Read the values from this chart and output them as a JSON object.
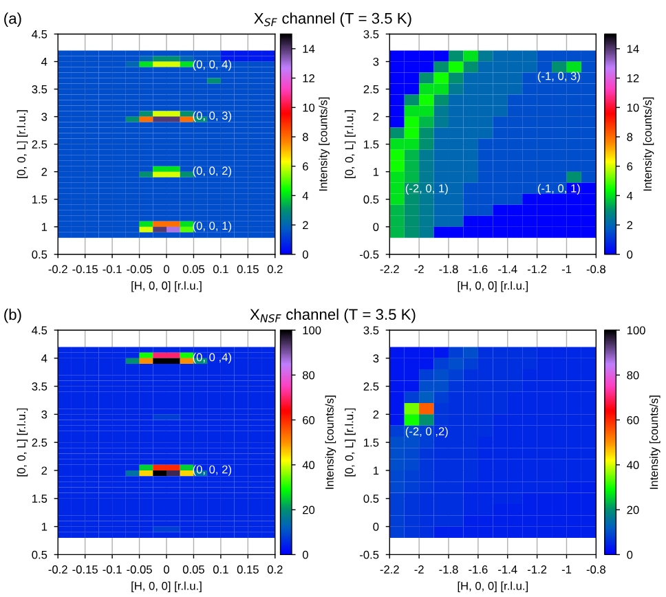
{
  "chart_data": [
    {
      "type": "heatmap",
      "title": "X$_{SF}$ channel (T = 3.5 K)",
      "xlabel": "[H, 0, 0] [r.l.u.]",
      "ylabel": "[0, 0, L] [r.l.u.]",
      "clabel": "Intensity [counts/s]",
      "grid": true,
      "xlim": [
        -0.2,
        0.2
      ],
      "xticks": [
        -0.2,
        -0.15,
        -0.1,
        -0.05,
        0,
        0.05,
        0.1,
        0.15,
        0.2
      ],
      "ylim": [
        0.5,
        4.5
      ],
      "yticks": [
        0.5,
        1,
        1.5,
        2,
        2.5,
        3,
        3.5,
        4,
        4.5
      ],
      "clim": [
        0,
        15
      ],
      "cticks": [
        0,
        2,
        4,
        6,
        8,
        10,
        12,
        14
      ],
      "annotations": [
        "(a)",
        "(0, 0, 4)",
        "(0, 0, 3)",
        "(0, 0, 2)",
        "(0, 0, 1)"
      ],
      "x": [
        -0.1875,
        -0.1625,
        -0.1375,
        -0.1125,
        -0.0875,
        -0.0625,
        -0.0375,
        -0.0125,
        0.0125,
        0.0375,
        0.0625,
        0.0875,
        0.1125,
        0.1375,
        0.1625,
        0.1875
      ],
      "y": [
        4.15,
        4.05,
        3.95,
        3.85,
        3.75,
        3.65,
        3.55,
        3.45,
        3.35,
        3.25,
        3.15,
        3.05,
        2.95,
        2.85,
        2.75,
        2.65,
        2.55,
        2.45,
        2.35,
        2.25,
        2.15,
        2.05,
        1.95,
        1.85,
        1.75,
        1.65,
        1.55,
        1.45,
        1.35,
        1.25,
        1.15,
        1.05,
        0.95,
        0.85
      ],
      "cells": [
        [
          1.5,
          1.5,
          1.5,
          1.5,
          1.5,
          1.5,
          1.5,
          1.5,
          1.5,
          1.5,
          1.5,
          1.5,
          0.5,
          0.5,
          0.5,
          0.5
        ],
        [
          1.5,
          1.5,
          1.5,
          1.5,
          1.5,
          1.5,
          2,
          3,
          3,
          2,
          1.5,
          1.5,
          0.5,
          0.5,
          0.5,
          0.5
        ],
        [
          1.5,
          1.5,
          1.5,
          1.5,
          1.5,
          2,
          4,
          6,
          6,
          4,
          1.5,
          1.5,
          1.5,
          1.5,
          1.5,
          1.5
        ],
        [
          1.5,
          1.5,
          1.5,
          1.5,
          1.5,
          1.5,
          1.5,
          1.5,
          1.5,
          1.5,
          1.5,
          1.5,
          1.5,
          1.5,
          1.5,
          1.5
        ],
        [
          1.5,
          1.5,
          1.5,
          1.5,
          1.5,
          1.5,
          1.5,
          1.5,
          1.5,
          1.5,
          1.5,
          1.5,
          1.5,
          1.5,
          1.5,
          1.5
        ],
        [
          1.5,
          1.5,
          1.5,
          1.5,
          1.5,
          1.5,
          1.5,
          1.5,
          1.5,
          1.5,
          1.5,
          3,
          1.5,
          1.5,
          1.5,
          1.5
        ],
        [
          1.5,
          1.5,
          1.5,
          1.5,
          1.5,
          1.5,
          1.5,
          1.5,
          1.5,
          1.5,
          1.5,
          1.5,
          1.5,
          1.5,
          1.5,
          1.5
        ],
        [
          1.5,
          1.5,
          1.5,
          1.5,
          1.5,
          1.5,
          1.5,
          1.5,
          1.5,
          1.5,
          1.5,
          1.5,
          1.5,
          1.5,
          1.5,
          1.5
        ],
        [
          1.5,
          1.5,
          1.5,
          1.5,
          1.5,
          1.5,
          1.5,
          1.5,
          1.5,
          1.5,
          1.5,
          1.5,
          1.5,
          1.5,
          1.5,
          1.5
        ],
        [
          1.5,
          1.5,
          1.5,
          1.5,
          1.5,
          1.5,
          1.5,
          1.5,
          1.5,
          1.5,
          1.5,
          1.5,
          1.5,
          1.5,
          1.5,
          1.5
        ],
        [
          1.5,
          1.5,
          1.5,
          1.5,
          1.5,
          1.5,
          1.5,
          1.5,
          1.5,
          1.5,
          1.5,
          1.5,
          1.5,
          1.5,
          1.5,
          1.5
        ],
        [
          1.5,
          1.5,
          1.5,
          1.5,
          1.5,
          1.5,
          3,
          6,
          6,
          3,
          1.5,
          1.5,
          1.5,
          1.5,
          1.5,
          1.5
        ],
        [
          1.5,
          1.5,
          1.5,
          1.5,
          1.5,
          3,
          8,
          14,
          14,
          8,
          3,
          1.5,
          1.5,
          1.5,
          1.5,
          1.5
        ],
        [
          1.5,
          1.5,
          1.5,
          1.5,
          1.5,
          1.5,
          1.5,
          1.5,
          1.5,
          1.5,
          1.5,
          1.5,
          1.5,
          1.5,
          1.5,
          1.5
        ],
        [
          1.5,
          1.5,
          1.5,
          1.5,
          1.5,
          1.5,
          1.5,
          1.5,
          1.5,
          1.5,
          1.5,
          1.5,
          1.5,
          1.5,
          1.5,
          1.5
        ],
        [
          1.5,
          1.5,
          1.5,
          1.5,
          1.5,
          1.5,
          1.5,
          1.5,
          1.5,
          1.5,
          1.5,
          1.5,
          1.5,
          1.5,
          1.5,
          1.5
        ],
        [
          1.5,
          1.5,
          1.5,
          1.5,
          1.5,
          1.5,
          1.5,
          1.5,
          1.5,
          1.5,
          1.5,
          1.5,
          1.5,
          1.5,
          1.5,
          1.5
        ],
        [
          1.5,
          1.5,
          1.5,
          1.5,
          1.5,
          1.5,
          1.5,
          1.5,
          1.5,
          1.5,
          1.5,
          1.5,
          1.5,
          1.5,
          1.5,
          1.5
        ],
        [
          1.5,
          1.5,
          1.5,
          1.5,
          1.5,
          1.5,
          1.5,
          1.5,
          1.5,
          1.5,
          1.5,
          1.5,
          1.5,
          1.5,
          1.5,
          1.5
        ],
        [
          1.5,
          1.5,
          1.5,
          1.5,
          1.5,
          1.5,
          1.5,
          1.5,
          1.5,
          1.5,
          1.5,
          1.5,
          1.5,
          1.5,
          1.5,
          1.5
        ],
        [
          1.5,
          1.5,
          1.5,
          1.5,
          1.5,
          1.5,
          1.5,
          1.5,
          1.5,
          1.5,
          1.5,
          1.5,
          1.5,
          1.5,
          1.5,
          1.5
        ],
        [
          1.5,
          1.5,
          1.5,
          1.5,
          1.5,
          1.5,
          1.5,
          4,
          4,
          1.5,
          1.5,
          1.5,
          1.5,
          1.5,
          1.5,
          1.5
        ],
        [
          1.5,
          1.5,
          1.5,
          1.5,
          1.5,
          1.5,
          3,
          6,
          6,
          3,
          1.5,
          1.5,
          1.5,
          1.5,
          1.5,
          1.5
        ],
        [
          1.5,
          1.5,
          1.5,
          1.5,
          1.5,
          1.5,
          1.5,
          1.5,
          1.5,
          1.5,
          1.5,
          1.5,
          1.5,
          1.5,
          1.5,
          1.5
        ],
        [
          1.5,
          1.5,
          1.5,
          1.5,
          1.5,
          1.5,
          1.5,
          1.5,
          1.5,
          1.5,
          1.5,
          1.5,
          1.5,
          1.5,
          1.5,
          1.5
        ],
        [
          1.5,
          1.5,
          1.5,
          1.5,
          1.5,
          1.5,
          1.5,
          1.5,
          1.5,
          1.5,
          1.5,
          1.5,
          1.5,
          1.5,
          1.5,
          1.5
        ],
        [
          1.5,
          1.5,
          1.5,
          1.5,
          1.5,
          1.5,
          1.5,
          1.5,
          1.5,
          1.5,
          1.5,
          1.5,
          1.5,
          1.5,
          1.5,
          1.5
        ],
        [
          1.5,
          1.5,
          1.5,
          1.5,
          1.5,
          1.5,
          1.5,
          1.5,
          1.5,
          1.5,
          1.5,
          1.5,
          1.5,
          1.5,
          1.5,
          1.5
        ],
        [
          1.5,
          1.5,
          1.5,
          1.5,
          1.5,
          1.5,
          1.5,
          1.5,
          1.5,
          1.5,
          1.5,
          1.5,
          1.5,
          1.5,
          1.5,
          1.5
        ],
        [
          1.5,
          1.5,
          1.5,
          1.5,
          1.5,
          1.5,
          1.5,
          1.5,
          1.5,
          1.5,
          1.5,
          1.5,
          1.5,
          1.5,
          1.5,
          1.5
        ],
        [
          1.5,
          1.5,
          1.5,
          1.5,
          1.5,
          1.5,
          1.5,
          1.5,
          1.5,
          1.5,
          1.5,
          1.5,
          1.5,
          1.5,
          1.5,
          1.5
        ],
        [
          1.5,
          1.5,
          1.5,
          1.5,
          1.5,
          1.5,
          4,
          8,
          8,
          4,
          1.5,
          1.5,
          1.5,
          1.5,
          1.5,
          1.5
        ],
        [
          1.5,
          1.5,
          1.5,
          1.5,
          1.5,
          1.5,
          6,
          14,
          13,
          5,
          1.5,
          1.5,
          1.5,
          1.5,
          1.5,
          1.5
        ],
        [
          1.5,
          1.5,
          1.5,
          1.5,
          1.5,
          1.5,
          1.5,
          1.5,
          1.5,
          1.5,
          1.5,
          1.5,
          1.5,
          1.5,
          1.5,
          1.5
        ]
      ]
    },
    {
      "type": "heatmap",
      "xlabel": "[H, 0, 0] [r.l.u.]",
      "ylabel": "[0, 0, L] [r.l.u.]",
      "clabel": "Intensity [counts/s]",
      "grid": true,
      "xlim": [
        -2.2,
        -0.8
      ],
      "xticks": [
        -2.2,
        -2,
        -1.8,
        -1.6,
        -1.4,
        -1.2,
        -1,
        -0.8
      ],
      "ylim": [
        -0.5,
        3.5
      ],
      "yticks": [
        -0.5,
        0,
        0.5,
        1,
        1.5,
        2,
        2.5,
        3,
        3.5
      ],
      "clim": [
        0,
        15
      ],
      "cticks": [
        0,
        2,
        4,
        6,
        8,
        10,
        12,
        14
      ],
      "annotations": [
        "(-1, 0, 3)",
        "(-2, 0, 1)",
        "(-1, 0, 1)"
      ],
      "x": [
        -2.15,
        -2.05,
        -1.95,
        -1.85,
        -1.75,
        -1.65,
        -1.55,
        -1.45,
        -1.35,
        -1.25,
        -1.15,
        -1.05,
        -0.95,
        -0.85
      ],
      "y": [
        3.1,
        2.9,
        2.7,
        2.5,
        2.3,
        2.1,
        1.9,
        1.7,
        1.5,
        1.3,
        1.1,
        0.9,
        0.7,
        0.5,
        0.3,
        0.1,
        -0.1
      ],
      "cells": [
        [
          0,
          0,
          0,
          0,
          3,
          4,
          2.5,
          2,
          2,
          2,
          1.5,
          1.5,
          1.5,
          1.5
        ],
        [
          0,
          0,
          0,
          3,
          4.5,
          3,
          2,
          2,
          2,
          2,
          1.5,
          3,
          4,
          1.5
        ],
        [
          0,
          0,
          3,
          4.5,
          3,
          2,
          2,
          2,
          2,
          1.5,
          1.5,
          1.5,
          1.5,
          1.5
        ],
        [
          0,
          0,
          4,
          4,
          2.5,
          2,
          2,
          2,
          2,
          1.5,
          1.5,
          1.5,
          1.5,
          1.5
        ],
        [
          0,
          3,
          4.5,
          3,
          2,
          2,
          2,
          2,
          1.5,
          1.5,
          1.5,
          1.5,
          1.5,
          1.5
        ],
        [
          0,
          4,
          4,
          2.5,
          2,
          2,
          2,
          2,
          1.5,
          1.5,
          1.5,
          1.5,
          1.5,
          1.5
        ],
        [
          0,
          4.5,
          3.5,
          2.5,
          2,
          2,
          2,
          1.5,
          1.5,
          1.5,
          1.5,
          1.5,
          1.5,
          1.5
        ],
        [
          3,
          4.5,
          3,
          2,
          2,
          2,
          2,
          1.5,
          1.5,
          1.5,
          1.5,
          1.5,
          1.5,
          1.5
        ],
        [
          4,
          4,
          3,
          2,
          2,
          2,
          1.5,
          1.5,
          1.5,
          1.5,
          1.5,
          1.5,
          1.5,
          1.5
        ],
        [
          4.5,
          3.5,
          2.5,
          2,
          2,
          2,
          1.5,
          1.5,
          1.5,
          1.5,
          1.5,
          1.5,
          1.5,
          1.5
        ],
        [
          4.5,
          3.5,
          2.5,
          2,
          2,
          2,
          1.5,
          1.5,
          1.5,
          1.5,
          1.5,
          1.5,
          1.5,
          1.5
        ],
        [
          4,
          3.5,
          2.5,
          2,
          2,
          2,
          1.5,
          1.5,
          1.5,
          1.5,
          1.5,
          1.5,
          3,
          1.5
        ],
        [
          4,
          3,
          2.5,
          2,
          2,
          1.5,
          1.5,
          1.5,
          1.5,
          1.5,
          1.5,
          1.5,
          0,
          0
        ],
        [
          4,
          3,
          2.5,
          2,
          2,
          1.5,
          1.5,
          1.5,
          1.5,
          0,
          0,
          0,
          0,
          0
        ],
        [
          3.5,
          3,
          2.5,
          2,
          2,
          1.5,
          1.5,
          0,
          0,
          0,
          0,
          0,
          0,
          0
        ],
        [
          3.5,
          3,
          2.5,
          2,
          2,
          0,
          0,
          0,
          0,
          0,
          0,
          0,
          0,
          0
        ],
        [
          3.5,
          3,
          2.5,
          0,
          0,
          0,
          0,
          0,
          0,
          0,
          0,
          0,
          0,
          0
        ]
      ]
    },
    {
      "type": "heatmap",
      "title": "X$_{NSF}$ channel (T = 3.5 K)",
      "xlabel": "[H, 0, 0] [r.l.u.]",
      "ylabel": "[0, 0, L] [r.l.u.]",
      "clabel": "Intensity [counts/s]",
      "grid": true,
      "xlim": [
        -0.2,
        0.2
      ],
      "xticks": [
        -0.2,
        -0.15,
        -0.1,
        -0.05,
        0,
        0.05,
        0.1,
        0.15,
        0.2
      ],
      "ylim": [
        0.5,
        4.5
      ],
      "yticks": [
        0.5,
        1,
        1.5,
        2,
        2.5,
        3,
        3.5,
        4,
        4.5
      ],
      "clim": [
        0,
        100
      ],
      "cticks": [
        0,
        20,
        40,
        60,
        80,
        100
      ],
      "annotations": [
        "(b)",
        "(0, 0 ,4)",
        "(0, 0, 2)"
      ],
      "x": [
        -0.1875,
        -0.1625,
        -0.1375,
        -0.1125,
        -0.0875,
        -0.0625,
        -0.0375,
        -0.0125,
        0.0125,
        0.0375,
        0.0625,
        0.0875,
        0.1125,
        0.1375,
        0.1625,
        0.1875
      ],
      "y": [
        4.15,
        4.05,
        3.95,
        3.85,
        3.75,
        3.65,
        3.55,
        3.45,
        3.35,
        3.25,
        3.15,
        3.05,
        2.95,
        2.85,
        2.75,
        2.65,
        2.55,
        2.45,
        2.35,
        2.25,
        2.15,
        2.05,
        1.95,
        1.85,
        1.75,
        1.65,
        1.55,
        1.45,
        1.35,
        1.25,
        1.15,
        1.05,
        0.95,
        0.85
      ],
      "cells": [
        [
          5,
          5,
          5,
          5,
          5,
          5,
          5,
          5,
          5,
          5,
          5,
          5,
          5,
          5,
          5,
          5
        ],
        [
          5,
          5,
          5,
          5,
          5,
          5,
          30,
          70,
          70,
          30,
          5,
          5,
          5,
          5,
          5,
          5
        ],
        [
          5,
          5,
          5,
          5,
          5,
          20,
          50,
          100,
          100,
          50,
          20,
          5,
          5,
          5,
          5,
          5
        ],
        [
          5,
          5,
          5,
          5,
          5,
          5,
          5,
          5,
          5,
          5,
          5,
          5,
          5,
          5,
          5,
          5
        ],
        [
          5,
          5,
          5,
          5,
          5,
          5,
          5,
          5,
          5,
          5,
          5,
          5,
          5,
          5,
          5,
          5
        ],
        [
          5,
          5,
          5,
          5,
          5,
          5,
          5,
          5,
          5,
          5,
          5,
          5,
          5,
          5,
          5,
          5
        ],
        [
          5,
          5,
          5,
          5,
          5,
          5,
          5,
          5,
          5,
          5,
          5,
          5,
          5,
          5,
          5,
          5
        ],
        [
          5,
          5,
          5,
          5,
          5,
          5,
          5,
          5,
          5,
          5,
          5,
          5,
          5,
          5,
          5,
          5
        ],
        [
          5,
          5,
          5,
          5,
          5,
          5,
          5,
          5,
          5,
          5,
          5,
          5,
          5,
          5,
          5,
          5
        ],
        [
          5,
          5,
          5,
          5,
          5,
          5,
          5,
          5,
          5,
          5,
          5,
          5,
          5,
          5,
          5,
          5
        ],
        [
          5,
          5,
          5,
          5,
          5,
          5,
          5,
          5,
          5,
          5,
          5,
          5,
          5,
          5,
          5,
          5
        ],
        [
          5,
          5,
          5,
          5,
          5,
          5,
          5,
          5,
          5,
          5,
          5,
          5,
          5,
          5,
          5,
          5
        ],
        [
          5,
          5,
          5,
          5,
          5,
          5,
          5,
          8,
          8,
          5,
          5,
          5,
          5,
          5,
          5,
          5
        ],
        [
          5,
          5,
          5,
          5,
          5,
          5,
          5,
          5,
          5,
          5,
          5,
          5,
          5,
          5,
          5,
          5
        ],
        [
          5,
          5,
          5,
          5,
          5,
          5,
          5,
          5,
          5,
          5,
          5,
          5,
          5,
          5,
          5,
          5
        ],
        [
          5,
          5,
          5,
          5,
          5,
          5,
          5,
          5,
          5,
          5,
          5,
          5,
          5,
          5,
          5,
          5
        ],
        [
          5,
          5,
          5,
          5,
          5,
          5,
          5,
          5,
          5,
          5,
          5,
          5,
          5,
          5,
          5,
          5
        ],
        [
          5,
          5,
          5,
          5,
          5,
          5,
          5,
          5,
          5,
          5,
          5,
          5,
          5,
          5,
          5,
          5
        ],
        [
          5,
          5,
          5,
          5,
          5,
          5,
          5,
          5,
          5,
          5,
          5,
          5,
          5,
          5,
          5,
          5
        ],
        [
          5,
          5,
          5,
          5,
          5,
          5,
          5,
          5,
          5,
          5,
          5,
          5,
          5,
          5,
          5,
          5
        ],
        [
          5,
          5,
          5,
          5,
          5,
          5,
          5,
          5,
          5,
          5,
          5,
          5,
          5,
          5,
          5,
          5
        ],
        [
          5,
          5,
          5,
          5,
          5,
          5,
          25,
          60,
          60,
          25,
          5,
          5,
          5,
          5,
          5,
          5
        ],
        [
          5,
          5,
          5,
          5,
          5,
          15,
          45,
          100,
          95,
          45,
          15,
          5,
          5,
          5,
          5,
          5
        ],
        [
          5,
          5,
          5,
          5,
          5,
          5,
          5,
          5,
          5,
          5,
          5,
          5,
          5,
          5,
          5,
          5
        ],
        [
          5,
          5,
          5,
          5,
          5,
          5,
          5,
          5,
          5,
          5,
          5,
          5,
          5,
          5,
          5,
          5
        ],
        [
          5,
          5,
          5,
          5,
          5,
          5,
          5,
          5,
          5,
          5,
          5,
          5,
          5,
          5,
          5,
          5
        ],
        [
          5,
          5,
          5,
          5,
          5,
          5,
          5,
          5,
          5,
          5,
          5,
          5,
          5,
          5,
          5,
          5
        ],
        [
          5,
          5,
          5,
          5,
          5,
          5,
          5,
          5,
          5,
          5,
          5,
          5,
          5,
          5,
          5,
          5
        ],
        [
          5,
          5,
          5,
          5,
          5,
          5,
          5,
          5,
          5,
          5,
          5,
          5,
          5,
          5,
          5,
          5
        ],
        [
          5,
          5,
          5,
          5,
          5,
          5,
          5,
          5,
          5,
          5,
          5,
          5,
          5,
          5,
          5,
          5
        ],
        [
          5,
          5,
          5,
          5,
          5,
          5,
          5,
          5,
          5,
          5,
          5,
          5,
          5,
          5,
          5,
          5
        ],
        [
          5,
          5,
          5,
          5,
          5,
          5,
          5,
          5,
          5,
          5,
          5,
          5,
          5,
          5,
          5,
          5
        ],
        [
          5,
          5,
          5,
          5,
          5,
          5,
          5,
          8,
          8,
          5,
          5,
          5,
          5,
          5,
          5,
          5
        ],
        [
          5,
          5,
          5,
          5,
          5,
          5,
          5,
          5,
          5,
          5,
          5,
          5,
          5,
          5,
          5,
          5
        ]
      ]
    },
    {
      "type": "heatmap",
      "xlabel": "[H, 0, 0] [r.l.u.]",
      "ylabel": "[0, 0, L] [r.l.u.]",
      "clabel": "Intensity [counts/s]",
      "grid": true,
      "xlim": [
        -2.2,
        -0.8
      ],
      "xticks": [
        -2.2,
        -2,
        -1.8,
        -1.6,
        -1.4,
        -1.2,
        -1,
        -0.8
      ],
      "ylim": [
        -0.5,
        3.5
      ],
      "yticks": [
        -0.5,
        0,
        0.5,
        1,
        1.5,
        2,
        2.5,
        3,
        3.5
      ],
      "clim": [
        0,
        100
      ],
      "cticks": [
        0,
        20,
        40,
        60,
        80,
        100
      ],
      "annotations": [
        "(-2, 0 ,2)"
      ],
      "x": [
        -2.15,
        -2.05,
        -1.95,
        -1.85,
        -1.75,
        -1.65,
        -1.55,
        -1.45,
        -1.35,
        -1.25,
        -1.15,
        -1.05,
        -0.95,
        -0.85
      ],
      "y": [
        3.1,
        2.9,
        2.7,
        2.5,
        2.3,
        2.1,
        1.9,
        1.7,
        1.5,
        1.3,
        1.1,
        0.9,
        0.7,
        0.5,
        0.3,
        0.1,
        -0.1
      ],
      "cells": [
        [
          3,
          3,
          3,
          3,
          8,
          10,
          6,
          6,
          6,
          6,
          5,
          5,
          5,
          5
        ],
        [
          3,
          3,
          3,
          8,
          10,
          8,
          6,
          6,
          6,
          6,
          5,
          5,
          5,
          5
        ],
        [
          3,
          3,
          8,
          10,
          8,
          6,
          6,
          6,
          6,
          5,
          5,
          5,
          5,
          5
        ],
        [
          3,
          3,
          10,
          10,
          7,
          6,
          6,
          6,
          6,
          5,
          5,
          5,
          5,
          5
        ],
        [
          3,
          8,
          12,
          8,
          6,
          6,
          6,
          6,
          5,
          5,
          5,
          5,
          5,
          5
        ],
        [
          3,
          35,
          55,
          7,
          6,
          6,
          6,
          6,
          5,
          5,
          5,
          5,
          5,
          5
        ],
        [
          3,
          30,
          20,
          7,
          6,
          6,
          6,
          5,
          5,
          5,
          5,
          5,
          5,
          5
        ],
        [
          8,
          10,
          8,
          6,
          6,
          6,
          6,
          5,
          5,
          5,
          5,
          5,
          5,
          5
        ],
        [
          10,
          10,
          8,
          6,
          6,
          6,
          5,
          5,
          5,
          5,
          5,
          5,
          5,
          5
        ],
        [
          10,
          9,
          7,
          6,
          6,
          6,
          5,
          5,
          5,
          5,
          5,
          5,
          5,
          5
        ],
        [
          10,
          9,
          7,
          6,
          6,
          6,
          5,
          5,
          5,
          5,
          5,
          5,
          5,
          5
        ],
        [
          9,
          8,
          7,
          6,
          6,
          6,
          5,
          5,
          5,
          5,
          5,
          5,
          5,
          5
        ],
        [
          9,
          8,
          7,
          6,
          6,
          5,
          5,
          5,
          5,
          5,
          5,
          5,
          4,
          4
        ],
        [
          8,
          7,
          6,
          6,
          6,
          5,
          5,
          5,
          5,
          4,
          4,
          4,
          4,
          4
        ],
        [
          8,
          7,
          6,
          6,
          6,
          5,
          5,
          4,
          4,
          4,
          4,
          4,
          4,
          4
        ],
        [
          8,
          7,
          6,
          6,
          6,
          4,
          4,
          4,
          4,
          4,
          4,
          4,
          4,
          4
        ],
        [
          8,
          7,
          6,
          4,
          4,
          4,
          4,
          4,
          4,
          4,
          4,
          4,
          4,
          4
        ]
      ]
    }
  ]
}
